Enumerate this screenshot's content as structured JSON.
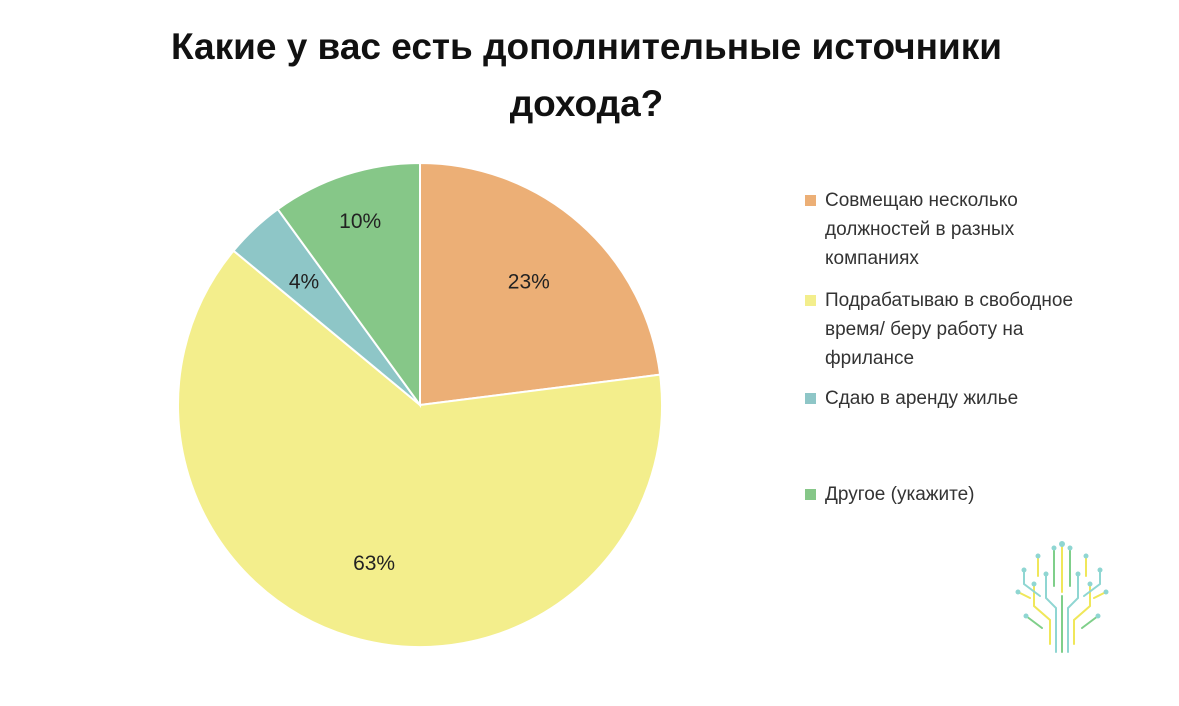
{
  "chart_data": {
    "type": "pie",
    "title": "Какие у вас есть дополнительные источники дохода?",
    "slices": [
      {
        "label": "Совмещаю несколько должностей в разных компаниях",
        "value": 23,
        "value_label": "23%",
        "color": "#ecaf76"
      },
      {
        "label": "Подрабатываю в свободное время/ беру работу на фрилансе",
        "value": 63,
        "value_label": "63%",
        "color": "#f3ee8c"
      },
      {
        "label": "Сдаю в аренду жилье",
        "value": 4,
        "value_label": "4%",
        "color": "#8ec6c7"
      },
      {
        "label": "Другое (укажите)",
        "value": 10,
        "value_label": "10%",
        "color": "#86c788"
      }
    ],
    "legend_position": "right"
  },
  "logo": {
    "icon": "circuit-tree-icon",
    "colors": [
      "#f0e75a",
      "#8fd6d2",
      "#7fcf8a"
    ]
  }
}
